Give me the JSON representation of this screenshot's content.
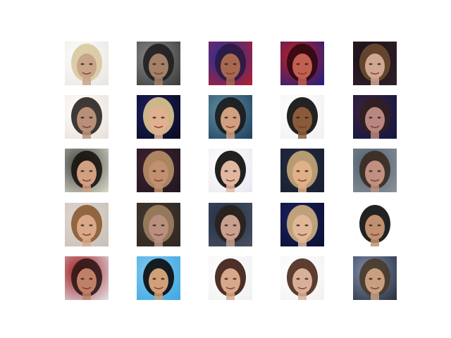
{
  "grid": {
    "rows": 5,
    "cols": 5,
    "tiles": [
      {
        "bg": "#e8e4e0",
        "hair": "#d8c8a0",
        "skin": "#c8a488",
        "accent": "#ffffff"
      },
      {
        "bg": "#3a3a3a",
        "hair": "#1e1e1e",
        "skin": "#a48068",
        "accent": "#8a8a8a"
      },
      {
        "bg": "#b02030",
        "hair": "#2a1a40",
        "skin": "#a86850",
        "accent": "#2030a0"
      },
      {
        "bg": "#202080",
        "hair": "#300810",
        "skin": "#c06050",
        "accent": "#c02020"
      },
      {
        "bg": "#302028",
        "hair": "#6a4a30",
        "skin": "#d0a890",
        "accent": "#1a1018"
      },
      {
        "bg": "#e8e0d8",
        "hair": "#2a2420",
        "skin": "#b89078",
        "accent": "#ffffff"
      },
      {
        "bg": "#0a0a20",
        "hair": "#e0c890",
        "skin": "#e0b090",
        "accent": "#1a2060"
      },
      {
        "bg": "#204060",
        "hair": "#1a1a1a",
        "skin": "#d0a080",
        "accent": "#6090a0"
      },
      {
        "bg": "#f0f0f0",
        "hair": "#0a0a0a",
        "skin": "#8a5a3a",
        "accent": "#ffffff"
      },
      {
        "bg": "#101840",
        "hair": "#302020",
        "skin": "#b88880",
        "accent": "#402040"
      },
      {
        "bg": "#d8d8c8",
        "hair": "#1a1410",
        "skin": "#d0a080",
        "accent": "#404040"
      },
      {
        "bg": "#201820",
        "hair": "#b89068",
        "skin": "#c09070",
        "accent": "#402030"
      },
      {
        "bg": "#e8e8f0",
        "hair": "#0a0808",
        "skin": "#e0b8a0",
        "accent": "#ffffff"
      },
      {
        "bg": "#1a2030",
        "hair": "#c8a878",
        "skin": "#e0b088",
        "accent": "#202840"
      },
      {
        "bg": "#8a9098",
        "hair": "#3a2a20",
        "skin": "#c09080",
        "accent": "#506070"
      },
      {
        "bg": "#c8c0b8",
        "hair": "#8a5a30",
        "skin": "#d8a888",
        "accent": "#e0d8d0"
      },
      {
        "bg": "#302820",
        "hair": "#a08060",
        "skin": "#b89080",
        "accent": "#403830"
      },
      {
        "bg": "#4a5060",
        "hair": "#2a2018",
        "skin": "#c8a090",
        "accent": "#203048"
      },
      {
        "bg": "#0a1030",
        "hair": "#d0b080",
        "skin": "#e0b898",
        "accent": "#1a2060"
      },
      {
        "bg": "#ffffff",
        "hair": "#0a0a0a",
        "skin": "#c09070",
        "accent": "#ffffff"
      },
      {
        "bg": "#e0e0e8",
        "hair": "#301818",
        "skin": "#c08068",
        "accent": "#a01818"
      },
      {
        "bg": "#40a8e0",
        "hair": "#0a0a0a",
        "skin": "#d0a078",
        "accent": "#80c8f0"
      },
      {
        "bg": "#f0f0f0",
        "hair": "#3a1a10",
        "skin": "#d8a888",
        "accent": "#ffffff"
      },
      {
        "bg": "#f4f0f0",
        "hair": "#4a2818",
        "skin": "#d8b098",
        "accent": "#ffffff"
      },
      {
        "bg": "#2a3040",
        "hair": "#4a3a28",
        "skin": "#c8a080",
        "accent": "#8090b0"
      }
    ]
  }
}
